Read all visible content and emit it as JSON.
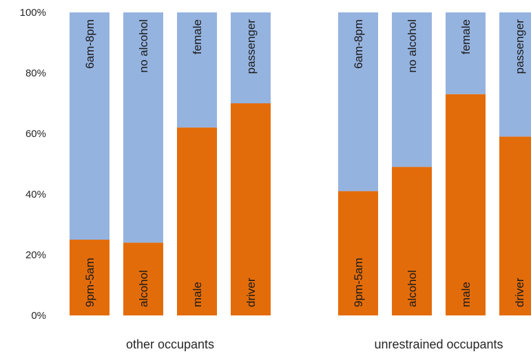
{
  "chart_data": {
    "type": "bar",
    "stacked": true,
    "normalized": true,
    "yticks": [
      "0%",
      "20%",
      "40%",
      "60%",
      "80%",
      "100%"
    ],
    "ylim": [
      0,
      100
    ],
    "grid": false,
    "colors": {
      "bottom": "#E36C0A",
      "top": "#95B3DF"
    },
    "groups": [
      {
        "label": "other occupants",
        "bars": [
          {
            "bottom_label": "9pm-5am",
            "top_label": "6am-8pm",
            "bottom": 25,
            "top": 75
          },
          {
            "bottom_label": "alcohol",
            "top_label": "no alcohol",
            "bottom": 24,
            "top": 76
          },
          {
            "bottom_label": "male",
            "top_label": "female",
            "bottom": 62,
            "top": 38
          },
          {
            "bottom_label": "driver",
            "top_label": "passenger",
            "bottom": 70,
            "top": 30
          }
        ]
      },
      {
        "label": "unrestrained occupants",
        "bars": [
          {
            "bottom_label": "9pm-5am",
            "top_label": "6am-8pm",
            "bottom": 41,
            "top": 59
          },
          {
            "bottom_label": "alcohol",
            "top_label": "no alcohol",
            "bottom": 49,
            "top": 51
          },
          {
            "bottom_label": "male",
            "top_label": "female",
            "bottom": 73,
            "top": 27
          },
          {
            "bottom_label": "driver",
            "top_label": "passenger",
            "bottom": 59,
            "top": 41
          }
        ]
      }
    ]
  }
}
